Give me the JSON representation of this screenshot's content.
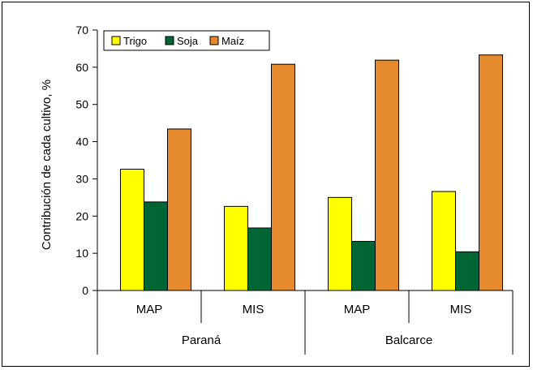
{
  "chart_data": {
    "type": "bar",
    "title": "",
    "ylabel": "Contribución de cada cultivo, %",
    "xlabel": "",
    "ylim": [
      0,
      70
    ],
    "yticks": [
      0,
      10,
      20,
      30,
      40,
      50,
      60,
      70
    ],
    "grid": false,
    "legend_position": "top-left",
    "categories": [
      "MAP",
      "MIS",
      "MAP",
      "MIS"
    ],
    "groups": [
      {
        "label": "Paraná",
        "categories": [
          0,
          1
        ]
      },
      {
        "label": "Balcarce",
        "categories": [
          2,
          3
        ]
      }
    ],
    "series": [
      {
        "name": "Trigo",
        "color": "#ffff00",
        "values": [
          32.6,
          22.6,
          25.0,
          26.6
        ]
      },
      {
        "name": "Soja",
        "color": "#006633",
        "values": [
          23.8,
          16.8,
          13.2,
          10.4
        ]
      },
      {
        "name": "Maíz",
        "color": "#e68a2e",
        "values": [
          43.4,
          60.8,
          61.9,
          63.3
        ]
      }
    ]
  }
}
